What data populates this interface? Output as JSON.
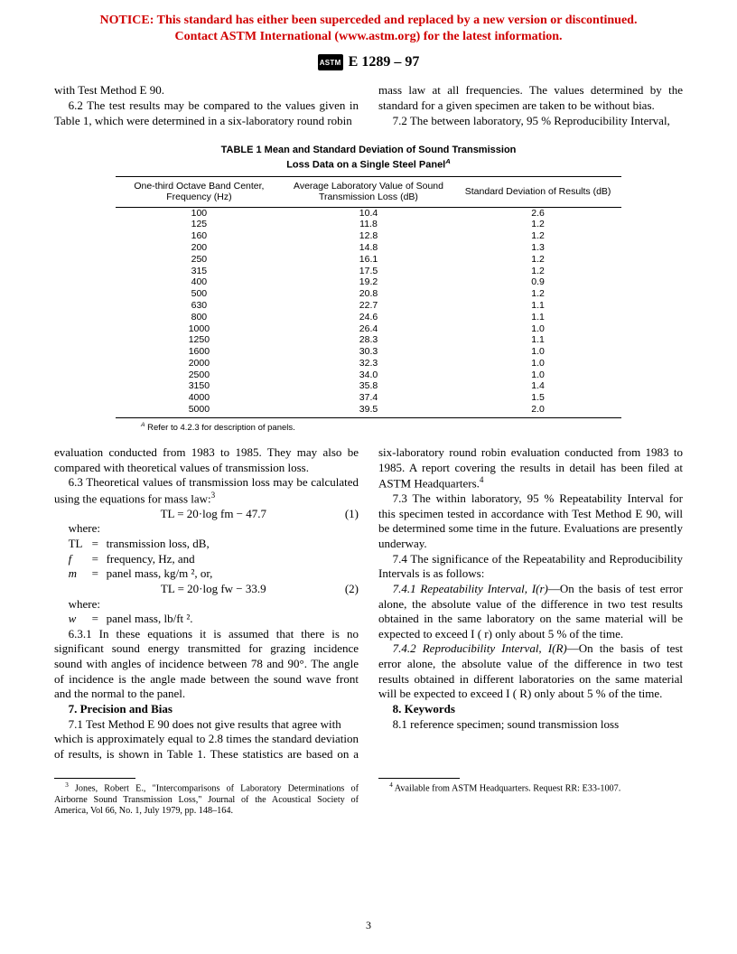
{
  "notice": {
    "line1": "NOTICE: This standard has either been superceded and replaced by a new version or discontinued.",
    "line2": "Contact ASTM International (www.astm.org) for the latest information."
  },
  "header": {
    "logo_text": "ASTM",
    "designation": "E 1289 – 97"
  },
  "body": {
    "col1_a": "with Test Method E 90.",
    "p62": "6.2 The test results may be compared to the values given in Table 1, which were determined in a six-laboratory round robin",
    "col2_a": "mass law at all frequencies. The values determined by the standard for a given specimen are taken to be without bias.",
    "p72": "7.2 The between laboratory, 95 % Reproducibility Interval,",
    "p_cont_1985": "evaluation conducted from 1983 to 1985. They may also be compared with theoretical values of transmission loss.",
    "p63": "6.3 Theoretical values of transmission loss may be calculated using the equations for mass law:",
    "eq1": "TL = 20·log fm − 47.7",
    "eq1_num": "(1)",
    "where1": "where:",
    "def_TL": {
      "sym": "TL",
      "txt": "transmission loss, dB,"
    },
    "def_f": {
      "sym": "f",
      "txt": "frequency, Hz, and"
    },
    "def_m": {
      "sym": "m",
      "txt": "panel mass, kg/m ², or,"
    },
    "eq2": "TL = 20·log fw − 33.9",
    "eq2_num": "(2)",
    "where2": "where:",
    "def_w": {
      "sym": "w",
      "txt": "panel mass, lb/ft ²."
    },
    "p631": "6.3.1 In these equations it is assumed that there is no significant sound energy transmitted for grazing incidence sound with angles of incidence between 78 and 90°. The angle of incidence is the angle made between the sound wave front and the normal to the panel.",
    "sec7_head": "7. Precision and Bias",
    "p71": "7.1 Test Method E 90 does not give results that agree with",
    "p72b": "which is approximately equal to 2.8 times the standard deviation of results, is shown in Table 1. These statistics are based on a six-laboratory round robin evaluation conducted from 1983 to 1985. A report covering the results in detail has been filed at ASTM Headquarters.",
    "p73": "7.3 The within laboratory, 95 % Repeatability Interval for this specimen tested in accordance with Test Method E 90, will be determined some time in the future. Evaluations are presently underway.",
    "p74": "7.4 The significance of the Repeatability and Reproducibility Intervals is as follows:",
    "p741_label": "7.4.1 Repeatability Interval, I(r)",
    "p741": "—On the basis of test error alone, the absolute value of the difference in two test results obtained in the same laboratory on the same material will be expected to exceed I ( r) only about 5 % of the time.",
    "p742_label": "7.4.2 Reproducibility Interval, I(R)",
    "p742": "—On the basis of test error alone, the absolute value of the difference in two test results obtained in different laboratories on the same material will be expected to exceed I ( R) only about 5 % of the time.",
    "sec8_head": "8. Keywords",
    "p81": "8.1 reference specimen; sound transmission loss"
  },
  "table": {
    "title_l1": "TABLE 1 Mean and Standard Deviation of Sound Transmission",
    "title_l2": "Loss Data on a Single Steel Panel",
    "columns": {
      "c1": "One-third Octave Band Center, Frequency (Hz)",
      "c2": "Average Laboratory Value of Sound Transmission Loss (dB)",
      "c3": "Standard Deviation of Results (dB)"
    },
    "rows": [
      [
        "100",
        "10.4",
        "2.6"
      ],
      [
        "125",
        "11.8",
        "1.2"
      ],
      [
        "160",
        "12.8",
        "1.2"
      ],
      [
        "200",
        "14.8",
        "1.3"
      ],
      [
        "250",
        "16.1",
        "1.2"
      ],
      [
        "315",
        "17.5",
        "1.2"
      ],
      [
        "400",
        "19.2",
        "0.9"
      ],
      [
        "500",
        "20.8",
        "1.2"
      ],
      [
        "630",
        "22.7",
        "1.1"
      ],
      [
        "800",
        "24.6",
        "1.1"
      ],
      [
        "1000",
        "26.4",
        "1.0"
      ],
      [
        "1250",
        "28.3",
        "1.1"
      ],
      [
        "1600",
        "30.3",
        "1.0"
      ],
      [
        "2000",
        "32.3",
        "1.0"
      ],
      [
        "2500",
        "34.0",
        "1.0"
      ],
      [
        "3150",
        "35.8",
        "1.4"
      ],
      [
        "4000",
        "37.4",
        "1.5"
      ],
      [
        "5000",
        "39.5",
        "2.0"
      ]
    ],
    "note_sup": "A",
    "note": " Refer to 4.2.3 for description of panels."
  },
  "footnotes": {
    "fn3_sup": "3",
    "fn3": " Jones, Robert E., \"Intercomparisons of Laboratory Determinations of Airborne Sound Transmission Loss,\" Journal of the Acoustical Society of America, Vol 66, No. 1, July 1979, pp. 148–164.",
    "fn4_sup": "4",
    "fn4": " Available from ASTM Headquarters. Request RR: E33-1007."
  },
  "page_number": "3"
}
